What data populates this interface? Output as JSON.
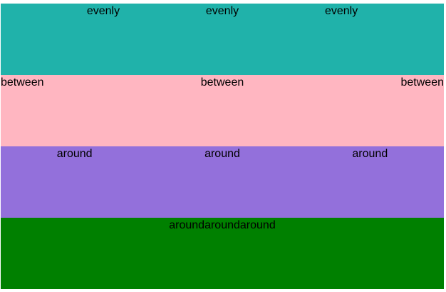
{
  "rows": [
    {
      "id": "evenly",
      "color": "#20b2aa",
      "items": [
        "evenly",
        "evenly",
        "evenly"
      ]
    },
    {
      "id": "between",
      "color": "#ffb6c1",
      "items": [
        "between",
        "between",
        "between"
      ]
    },
    {
      "id": "around",
      "color": "#9370db",
      "items": [
        "around",
        "around",
        "around"
      ]
    },
    {
      "id": "around-collapsed",
      "color": "#008000",
      "items": [
        "around",
        "around",
        "around"
      ]
    }
  ]
}
